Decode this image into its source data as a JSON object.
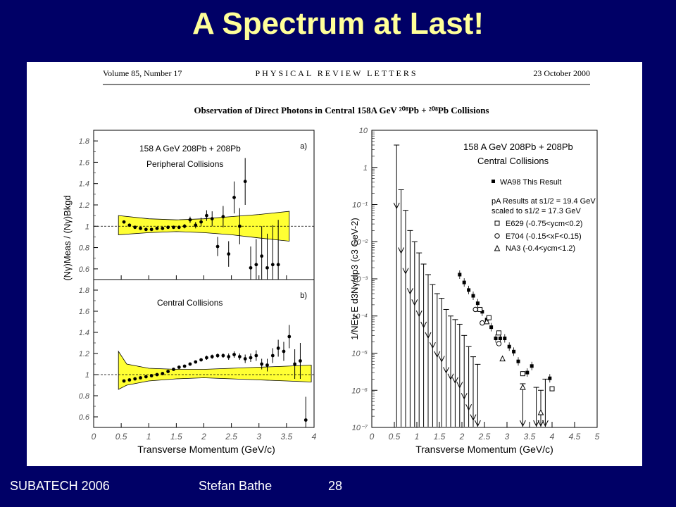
{
  "slide": {
    "title": "A Spectrum at Last!"
  },
  "footer": {
    "conference": "SUBATECH 2006",
    "author": "Stefan Bathe",
    "page": "28"
  },
  "paper": {
    "journal_volume": "Volume 85, Number 17",
    "journal_name": "PHYSICAL REVIEW LETTERS",
    "date": "23 October 2000",
    "title": "Observation of Direct Photons in Central 158A GeV ²⁰⁸Pb + ²⁰⁸Pb Collisions"
  },
  "colors": {
    "band": "#ffff33",
    "slide_bg": "#000066",
    "title": "#ffff99"
  },
  "chart_data": [
    {
      "type": "scatter",
      "panel": "a)",
      "system": "158 A GeV 208Pb + 208Pb",
      "subtitle": "Peripheral Collisions",
      "ylabel": "(Nγ)Meas / (Nγ)Bkgd",
      "xlim": [
        0,
        4
      ],
      "ylim": [
        0.5,
        1.9
      ],
      "x": [
        0.55,
        0.65,
        0.75,
        0.85,
        0.95,
        1.05,
        1.15,
        1.25,
        1.35,
        1.45,
        1.55,
        1.65,
        1.75,
        1.85,
        1.95,
        2.05,
        2.15,
        2.25,
        2.35,
        2.45,
        2.55,
        2.65,
        2.75,
        2.85,
        2.95,
        3.05,
        3.15,
        3.25,
        3.35
      ],
      "y": [
        1.04,
        1.01,
        0.99,
        0.98,
        0.97,
        0.97,
        0.98,
        0.98,
        0.99,
        0.99,
        0.99,
        1.0,
        1.06,
        1.01,
        1.04,
        1.1,
        1.07,
        0.81,
        1.09,
        0.74,
        1.27,
        1.0,
        1.42,
        0.61,
        0.64,
        0.72,
        0.61,
        0.64,
        0.64
      ],
      "yerr": [
        0.01,
        0.01,
        0.01,
        0.01,
        0.01,
        0.01,
        0.01,
        0.01,
        0.01,
        0.01,
        0.01,
        0.02,
        0.03,
        0.03,
        0.04,
        0.05,
        0.07,
        0.09,
        0.1,
        0.12,
        0.15,
        0.17,
        0.22,
        0.2,
        0.24,
        0.28,
        0.32,
        0.37,
        0.42
      ],
      "band_x": [
        0.45,
        1.0,
        1.5,
        2.0,
        2.5,
        3.0,
        3.55
      ],
      "band_lower": [
        0.92,
        0.94,
        0.95,
        0.94,
        0.92,
        0.89,
        0.86
      ],
      "band_upper": [
        1.1,
        1.07,
        1.06,
        1.07,
        1.09,
        1.11,
        1.14
      ],
      "yticks": [
        "0.6",
        "0.8",
        "1",
        "1.2",
        "1.4",
        "1.6",
        "1.8"
      ]
    },
    {
      "type": "scatter",
      "panel": "b)",
      "subtitle": "Central Collisions",
      "xlabel": "Transverse Momentum (GeV/c)",
      "xlim": [
        0,
        4
      ],
      "ylim": [
        0.5,
        1.9
      ],
      "x": [
        0.55,
        0.65,
        0.75,
        0.85,
        0.95,
        1.05,
        1.15,
        1.25,
        1.35,
        1.45,
        1.55,
        1.65,
        1.75,
        1.85,
        1.95,
        2.05,
        2.15,
        2.25,
        2.35,
        2.45,
        2.55,
        2.65,
        2.75,
        2.85,
        2.95,
        3.05,
        3.15,
        3.25,
        3.35,
        3.45,
        3.55,
        3.65,
        3.75,
        3.85
      ],
      "y": [
        0.94,
        0.95,
        0.96,
        0.97,
        0.98,
        0.99,
        1.0,
        1.01,
        1.03,
        1.05,
        1.07,
        1.08,
        1.1,
        1.12,
        1.14,
        1.16,
        1.17,
        1.18,
        1.18,
        1.17,
        1.19,
        1.17,
        1.15,
        1.16,
        1.18,
        1.1,
        1.09,
        1.18,
        1.25,
        1.22,
        1.36,
        1.1,
        1.13,
        0.57
      ],
      "yerr": [
        0.01,
        0.01,
        0.01,
        0.01,
        0.01,
        0.01,
        0.01,
        0.01,
        0.01,
        0.01,
        0.01,
        0.01,
        0.01,
        0.01,
        0.01,
        0.02,
        0.02,
        0.02,
        0.02,
        0.03,
        0.03,
        0.03,
        0.04,
        0.04,
        0.05,
        0.05,
        0.06,
        0.07,
        0.08,
        0.09,
        0.11,
        0.14,
        0.17,
        0.22
      ],
      "band_x": [
        0.45,
        0.6,
        1.0,
        1.5,
        2.0,
        2.5,
        3.0,
        3.5,
        3.95
      ],
      "band_lower": [
        0.86,
        0.9,
        0.94,
        0.96,
        0.97,
        0.96,
        0.95,
        0.94,
        0.93
      ],
      "band_upper": [
        1.22,
        1.1,
        1.06,
        1.05,
        1.05,
        1.06,
        1.07,
        1.08,
        1.09
      ],
      "xticks": [
        "0",
        "0.5",
        "1",
        "1.5",
        "2",
        "2.5",
        "3",
        "3.5",
        "4"
      ],
      "yticks": [
        "0.6",
        "0.8",
        "1",
        "1.2",
        "1.4",
        "1.6",
        "1.8"
      ]
    },
    {
      "type": "scatter",
      "log_y": true,
      "system": "158 A GeV 208Pb + 208Pb",
      "subtitle": "Central Collisions",
      "xlabel": "Transverse Momentum (GeV/c)",
      "ylabel": "1/NEv E d3Nγ/dp3 (c3 GeV-2)",
      "xlim": [
        0,
        5
      ],
      "ylim": [
        1e-07,
        10
      ],
      "xticks": [
        "0",
        "0.5",
        "1",
        "1.5",
        "2",
        "2.5",
        "3",
        "3.5",
        "4",
        "4.5",
        "5"
      ],
      "yticks": [
        "10⁻⁷",
        "10⁻⁶",
        "10⁻⁵",
        "10⁻⁴",
        "10⁻³",
        "10⁻²",
        "10⁻¹",
        "1",
        "10"
      ],
      "legend": {
        "wa98": "WA98 This Result",
        "pa_header_1": "pA Results at s1/2 = 19.4 GeV",
        "pa_header_2": "scaled to s1/2 = 17.3 GeV",
        "e629": "E629 (-0.75<ycm<0.2)",
        "e704": "E704 (-0.15<xF<0.15)",
        "na3": "NA3 (-0.4<ycm<1.2)"
      },
      "series": [
        {
          "name": "WA98 This Result (upper limits)",
          "marker": "arrow",
          "x": [
            0.55,
            0.65,
            0.75,
            0.85,
            0.95,
            1.05,
            1.15,
            1.25,
            1.35,
            1.45,
            1.55,
            1.65,
            1.75,
            1.85,
            1.95,
            2.05,
            2.15,
            2.25,
            2.35,
            3.35,
            3.65,
            3.75,
            3.85
          ],
          "y": [
            4.0,
            0.25,
            0.07,
            0.02,
            0.01,
            0.005,
            0.0025,
            0.0013,
            0.0007,
            0.0004,
            0.0003,
            0.00015,
            0.0001,
            8e-05,
            6e-05,
            3e-05,
            1.5e-05,
            8e-06,
            5e-06,
            1.5e-06,
            1.2e-06,
            1e-06,
            2e-06
          ]
        },
        {
          "name": "WA98 This Result",
          "marker": "filled-square",
          "x": [
            1.95,
            2.05,
            2.15,
            2.25,
            2.35,
            2.45,
            2.55,
            2.65,
            2.75,
            2.85,
            2.95,
            3.05,
            3.15,
            3.25,
            3.45,
            3.55,
            3.95
          ],
          "y": [
            0.0013,
            0.0008,
            0.0005,
            0.00035,
            0.00022,
            0.00013,
            8e-05,
            5e-05,
            2.5e-05,
            2.5e-05,
            2.5e-05,
            1.5e-05,
            1.1e-05,
            6e-06,
            3e-06,
            4.5e-06,
            2.1e-06
          ]
        },
        {
          "name": "E629 (-0.75<ycm<0.2)",
          "marker": "open-square",
          "x": [
            2.4,
            2.6,
            2.82,
            3.35,
            4.0
          ],
          "y": [
            0.00015,
            9e-05,
            3.5e-05,
            2.8e-06,
            1.1e-06
          ]
        },
        {
          "name": "E704 (-0.15<xF<0.15)",
          "marker": "open-circle",
          "x": [
            2.3,
            2.45,
            2.82
          ],
          "y": [
            0.00015,
            6.5e-05,
            1.8e-05
          ]
        },
        {
          "name": "NA3 (-0.4<ycm<1.2)",
          "marker": "open-triangle",
          "x": [
            2.55,
            2.9,
            3.35,
            3.75
          ],
          "y": [
            7e-05,
            7e-06,
            1.2e-06,
            2.5e-07
          ]
        }
      ]
    }
  ]
}
